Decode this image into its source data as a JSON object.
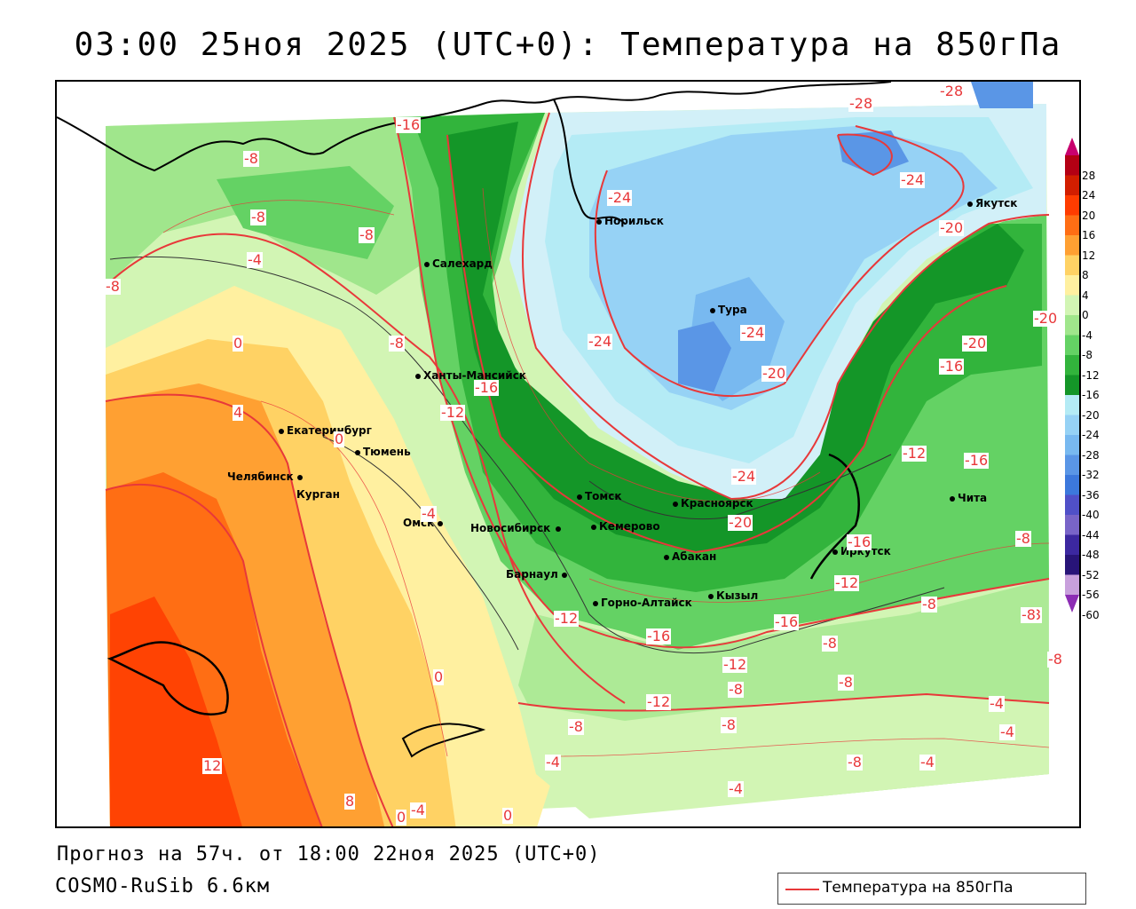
{
  "title": "03:00 25ноя 2025 (UTC+0): Температура на 850гПа",
  "footer": {
    "forecast": "Прогноз на 57ч. от 18:00 22ноя 2025 (UTC+0)",
    "model": "COSMO-RuSib 6.6км"
  },
  "legend": {
    "label": "Температура на 850гПа",
    "line_color": "#e8383a"
  },
  "colorbar": {
    "ticks": [
      "28",
      "24",
      "20",
      "16",
      "12",
      "8",
      "4",
      "0",
      "-4",
      "-8",
      "-12",
      "-16",
      "-20",
      "-24",
      "-28",
      "-32",
      "-36",
      "-40",
      "-44",
      "-48",
      "-52",
      "-56",
      "-60"
    ],
    "colors": [
      "#c8006e",
      "#b40014",
      "#d21e00",
      "#ff3c00",
      "#ff6e14",
      "#ffa032",
      "#ffd264",
      "#fff0a0",
      "#d2f5b4",
      "#a0e68c",
      "#64d264",
      "#32b43c",
      "#149628",
      "#b4ebf5",
      "#96d2f5",
      "#78b9f0",
      "#5a96e6",
      "#3c78dc",
      "#5050c8",
      "#7864c8",
      "#3c28a0",
      "#281478",
      "#c8a0dc",
      "#8c2db4"
    ]
  },
  "cities": [
    {
      "name": "Норильск"
    },
    {
      "name": "Якутск"
    },
    {
      "name": "Салехард"
    },
    {
      "name": "Тура"
    },
    {
      "name": "Ханты-Мансийск"
    },
    {
      "name": "Екатеринбург"
    },
    {
      "name": "Тюмень"
    },
    {
      "name": "Челябинск"
    },
    {
      "name": "Курган"
    },
    {
      "name": "Омск"
    },
    {
      "name": "Томск"
    },
    {
      "name": "Красноярск"
    },
    {
      "name": "Новосибирск"
    },
    {
      "name": "Кемерово"
    },
    {
      "name": "Абакан"
    },
    {
      "name": "Барнаул"
    },
    {
      "name": "Иркутск"
    },
    {
      "name": "Чита"
    },
    {
      "name": "Кызыл"
    },
    {
      "name": "Горно-Алтайск"
    }
  ],
  "contour_labels": [
    "-16",
    "-28",
    "-28",
    "-8",
    "-8",
    "-8",
    "-4",
    "-8",
    "-24",
    "-24",
    "-20",
    "-24",
    "-20",
    "-20",
    "-16",
    "-8",
    "-16",
    "-24",
    "-20",
    "-12",
    "-12",
    "-16",
    "-24",
    "-20",
    "-16",
    "-12",
    "0",
    "0",
    "4",
    "-4",
    "-8",
    "-12",
    "-16",
    "-12",
    "-16",
    "-12",
    "-8",
    "-8",
    "-8",
    "-8",
    "-8",
    "0",
    "-8",
    "-4",
    "-4",
    "-4",
    "-4",
    "-8",
    "-4",
    "12",
    "8",
    "0",
    "-4",
    "0",
    "-8",
    "-8",
    "-8"
  ]
}
